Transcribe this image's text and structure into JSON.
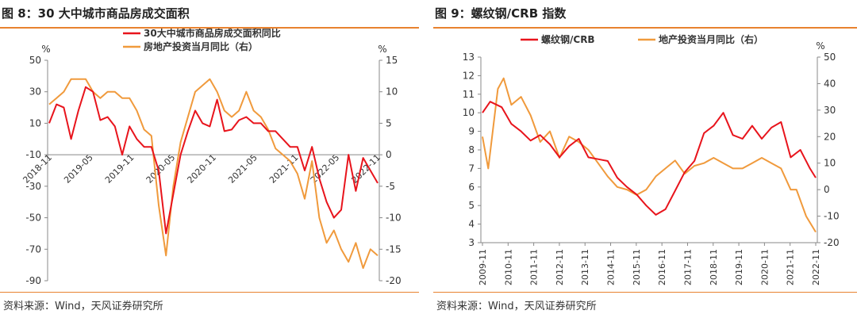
{
  "charts": [
    {
      "title": "图 8：30 大中城市商品房成交面积",
      "source": "资料来源：Wind，天风证券研究所",
      "chart_data": {
        "type": "line",
        "left_unit": "%",
        "right_unit": "%",
        "y_left": {
          "min": -90,
          "max": 50,
          "ticks": [
            50,
            30,
            10,
            -10,
            -30,
            -50,
            -70,
            -90
          ]
        },
        "y_right": {
          "min": -20,
          "max": 15,
          "ticks": [
            15,
            10,
            5,
            0,
            -5,
            -10,
            -15,
            -20
          ]
        },
        "x_labels": [
          "2018-11",
          "2019-05",
          "2019-11",
          "2020-05",
          "2020-11",
          "2021-05",
          "2021-11",
          "2022-05",
          "2022-11"
        ],
        "series": [
          {
            "name": "30大中城市商品房成交面积同比",
            "axis": "left",
            "color": "#e8141c",
            "values": [
              10,
              22,
              20,
              0,
              18,
              33,
              30,
              12,
              14,
              8,
              -10,
              8,
              0,
              -5,
              -5,
              -20,
              -60,
              -35,
              -10,
              5,
              18,
              10,
              8,
              25,
              5,
              6,
              12,
              14,
              10,
              10,
              5,
              5,
              0,
              -5,
              -5,
              -20,
              -5,
              -25,
              -40,
              -50,
              -45,
              -10,
              -33,
              -12,
              -20,
              -28
            ]
          },
          {
            "name": "房地产投资当月同比（右）",
            "axis": "right",
            "color": "#f09a3c",
            "values": [
              8,
              9,
              10,
              12,
              12,
              12,
              10,
              9,
              10,
              10,
              9,
              9,
              7,
              4,
              3,
              -8,
              -16,
              -5,
              2,
              6,
              10,
              11,
              12,
              10,
              7,
              6,
              7,
              10,
              7,
              6,
              4,
              1,
              0,
              -1,
              -3,
              -7,
              -1,
              -10,
              -14,
              -12,
              -15,
              -17,
              -14,
              -18,
              -15,
              -16
            ]
          }
        ]
      }
    },
    {
      "title": "图 9：螺纹钢/CRB 指数",
      "source": "资料来源：Wind，天风证券研究所",
      "chart_data": {
        "type": "line",
        "left_unit": "",
        "right_unit": "%",
        "y_left": {
          "min": 3,
          "max": 13,
          "ticks": [
            13,
            12,
            11,
            10,
            9,
            8,
            7,
            6,
            5,
            4,
            3
          ]
        },
        "y_right": {
          "min": -20,
          "max": 50,
          "ticks": [
            50,
            40,
            30,
            20,
            10,
            0,
            -10,
            -20
          ]
        },
        "x_labels": [
          "2009-11",
          "2010-11",
          "2011-11",
          "2012-11",
          "2013-11",
          "2014-11",
          "2015-11",
          "2016-11",
          "2017-11",
          "2018-11",
          "2019-11",
          "2020-11",
          "2021-11",
          "2022-11"
        ],
        "series": [
          {
            "name": "螺纹钢/CRB",
            "axis": "left",
            "color": "#e8141c",
            "values": [
              10,
              10.6,
              10.3,
              9.4,
              9.0,
              8.5,
              8.8,
              8.3,
              7.6,
              8.2,
              8.6,
              7.6,
              7.5,
              7.4,
              6.5,
              6.0,
              5.6,
              5.0,
              4.5,
              4.8,
              5.8,
              6.8,
              7.4,
              8.9,
              9.3,
              10,
              8.8,
              8.6,
              9.3,
              8.6,
              9.2,
              9.5,
              7.6,
              8.0,
              7.0,
              6.5
            ],
            "x_positions": [
              0,
              0.4,
              1,
              1.5,
              2,
              2.5,
              3,
              3.5,
              4,
              4.5,
              5,
              5.5,
              6,
              6.5,
              7,
              7.5,
              8,
              8.5,
              9,
              9.5,
              10,
              10.5,
              11,
              11.5,
              12,
              12.5,
              13,
              13.5,
              14,
              14.5,
              15,
              15.5,
              16,
              16.5,
              17,
              17.3
            ]
          },
          {
            "name": "地产投资当月同比（右）",
            "axis": "right",
            "color": "#f09a3c",
            "values": [
              20,
              8,
              38,
              42,
              32,
              35,
              28,
              18,
              22,
              12,
              20,
              18,
              15,
              10,
              5,
              1,
              0,
              -2,
              0,
              5,
              8,
              11,
              6,
              9,
              10,
              12,
              10,
              8,
              8,
              10,
              12,
              10,
              8,
              0,
              0,
              -10,
              -16
            ],
            "x_positions": [
              0,
              0.3,
              0.8,
              1.1,
              1.5,
              2,
              2.5,
              3,
              3.5,
              4,
              4.5,
              5,
              5.5,
              6,
              6.5,
              7,
              7.5,
              8,
              8.5,
              9,
              9.5,
              10,
              10.5,
              11,
              11.5,
              12,
              12.5,
              13,
              13.5,
              14,
              14.5,
              15,
              15.5,
              16,
              16.3,
              16.8,
              17.3
            ]
          }
        ]
      }
    }
  ]
}
